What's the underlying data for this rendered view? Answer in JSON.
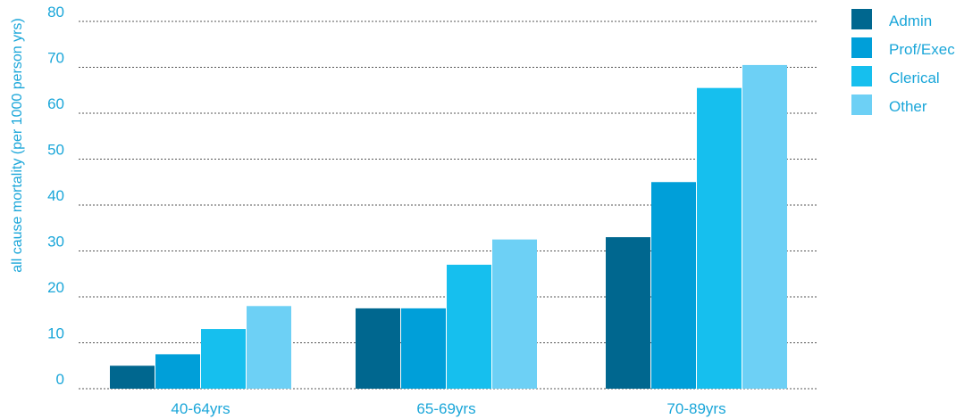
{
  "chart_data": {
    "type": "bar",
    "ylabel": "all cause mortality (per 1000 person yrs)",
    "ylim": [
      0,
      80
    ],
    "yticks": [
      "0",
      "10",
      "20",
      "30",
      "40",
      "50",
      "60",
      "70",
      "80"
    ],
    "grid": true,
    "legend_position": "top-right",
    "categories": [
      "40-64yrs",
      "65-69yrs",
      "70-89yrs"
    ],
    "series": [
      {
        "name": "Admin",
        "color": "#00678f",
        "values": [
          5,
          17.5,
          33
        ]
      },
      {
        "name": "Prof/Exec",
        "color": "#009fd9",
        "values": [
          7.5,
          17.5,
          45
        ]
      },
      {
        "name": "Clerical",
        "color": "#16bfee",
        "values": [
          13,
          27,
          65.5
        ]
      },
      {
        "name": "Other",
        "color": "#6dd0f5",
        "values": [
          18,
          32.5,
          70.5
        ]
      }
    ]
  }
}
